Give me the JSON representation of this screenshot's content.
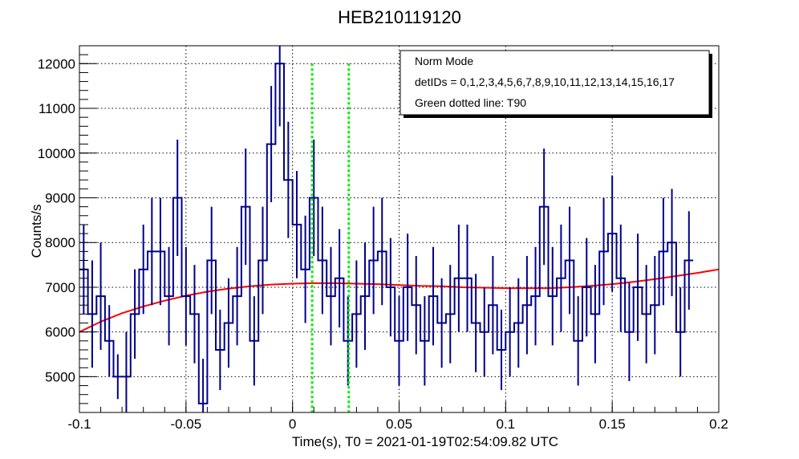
{
  "chart_data": {
    "type": "line",
    "title": "HEB210119120",
    "xlabel": "Time(s), T0 = 2021-01-19T02:54:09.82 UTC",
    "ylabel": "Counts/s",
    "xlim": [
      -0.1,
      0.2
    ],
    "ylim": [
      4200,
      12400
    ],
    "grid": true,
    "x_ticks": [
      -0.1,
      -0.05,
      0,
      0.05,
      0.1,
      0.15,
      0.2
    ],
    "x_tick_labels": [
      "-0.1",
      "-0.05",
      "0",
      "0.05",
      "0.1",
      "0.15",
      "0.2"
    ],
    "y_ticks": [
      5000,
      6000,
      7000,
      8000,
      9000,
      10000,
      11000,
      12000
    ],
    "y_tick_labels": [
      "5000",
      "6000",
      "7000",
      "8000",
      "9000",
      "10000",
      "11000",
      "12000"
    ],
    "legend": {
      "placement": "top-right",
      "lines": [
        "Norm Mode",
        "detIDs = 0,1,2,3,4,5,6,7,8,9,10,11,12,13,14,15,16,17",
        "Green dotted line: T90"
      ]
    },
    "histogram": {
      "color": "#00008b",
      "bin_width": 0.004,
      "bin_start": -0.1,
      "values": [
        7400,
        6400,
        6800,
        5800,
        5000,
        5000,
        6400,
        7400,
        7800,
        7800,
        6800,
        9000,
        6800,
        6400,
        4400,
        7600,
        5600,
        6200,
        6800,
        8800,
        5800,
        7600,
        10200,
        12000,
        9400,
        8400,
        7400,
        9000,
        7600,
        6800,
        7200,
        5800,
        6400,
        6800,
        7600,
        7800,
        7000,
        5800,
        7000,
        6600,
        5800,
        6800,
        6200,
        6400,
        7200,
        7200,
        6200,
        6000,
        6600,
        5600,
        6000,
        6200,
        6600,
        6800,
        8800,
        6800,
        7200,
        7600,
        5800,
        7000,
        6400,
        7800,
        8200,
        7200,
        6000,
        7000,
        6400,
        6600,
        7800,
        8000,
        6000,
        7600
      ],
      "errors": [
        1000,
        1200,
        1200,
        800,
        500,
        1000,
        1000,
        1000,
        1200,
        1200,
        1100,
        1300,
        1100,
        1100,
        1000,
        1200,
        900,
        1000,
        1100,
        1300,
        1000,
        1200,
        1300,
        1400,
        1300,
        1200,
        1200,
        1300,
        1200,
        1100,
        1100,
        1000,
        1200,
        1200,
        1200,
        1200,
        1100,
        1000,
        1200,
        1100,
        1000,
        1100,
        1000,
        1100,
        1200,
        1200,
        1100,
        1000,
        1100,
        900,
        1000,
        1000,
        1100,
        1100,
        1300,
        1100,
        1200,
        1200,
        1000,
        1100,
        1100,
        1200,
        1300,
        1200,
        1100,
        1200,
        1100,
        1100,
        1200,
        1200,
        1000,
        1100
      ]
    },
    "background_fit": {
      "color": "#ff0000",
      "x": [
        -0.1,
        -0.09,
        -0.08,
        -0.07,
        -0.06,
        -0.05,
        -0.04,
        -0.03,
        -0.02,
        -0.01,
        0,
        0.01,
        0.02,
        0.03,
        0.04,
        0.05,
        0.06,
        0.07,
        0.08,
        0.09,
        0.1,
        0.11,
        0.12,
        0.13,
        0.14,
        0.15,
        0.16,
        0.17,
        0.18,
        0.19,
        0.2
      ],
      "y": [
        6000,
        6230,
        6420,
        6570,
        6700,
        6810,
        6900,
        6970,
        7020,
        7060,
        7080,
        7090,
        7090,
        7080,
        7070,
        7050,
        7030,
        7020,
        7000,
        6990,
        6980,
        6980,
        6980,
        7000,
        7030,
        7070,
        7120,
        7180,
        7250,
        7320,
        7400
      ]
    },
    "t90_lines": {
      "color": "#00ee00",
      "x": [
        0.0092,
        0.0264
      ],
      "y_top": 12000
    }
  }
}
